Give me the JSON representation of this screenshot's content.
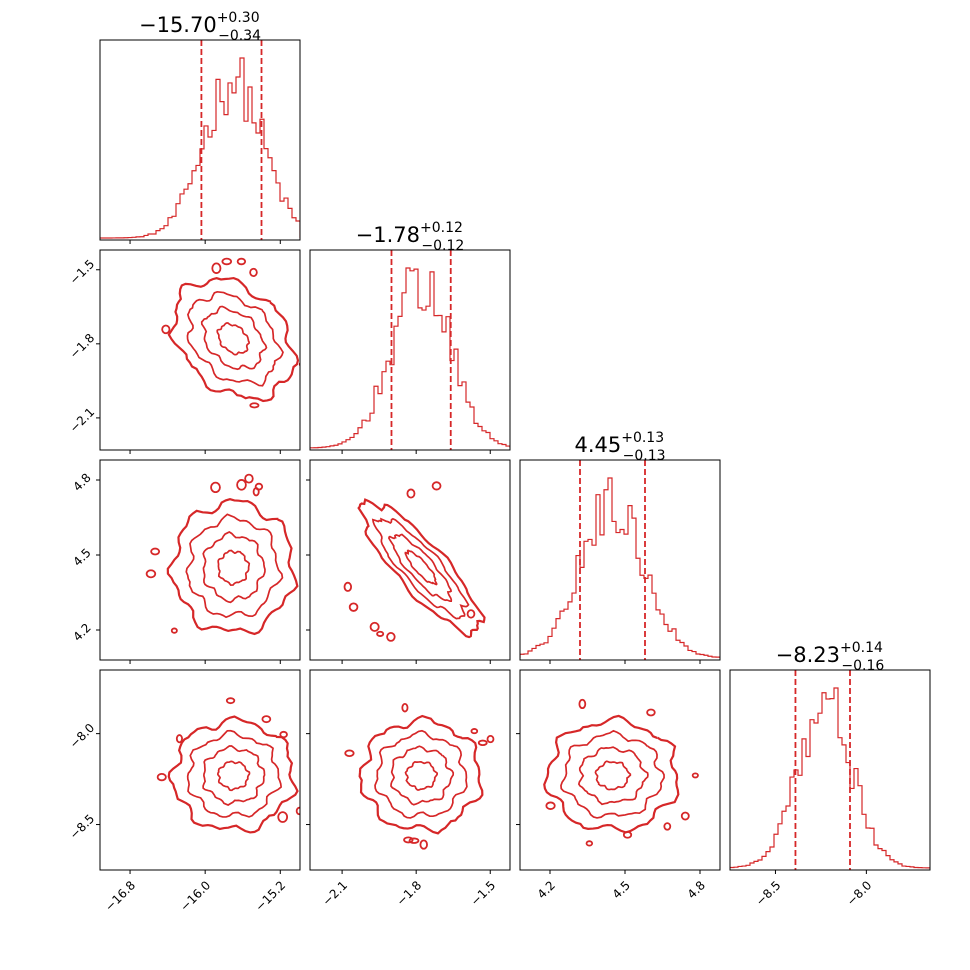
{
  "chart_data": {
    "type": "corner",
    "color": "#d62728",
    "parameters": [
      {
        "title_value": "−15.70",
        "title_upper": "+0.30",
        "title_lower": "−0.34",
        "range": [
          -17.12,
          -14.99
        ],
        "ticks": [
          -16.8,
          -16.0,
          -15.2
        ],
        "tick_labels": [
          "−16.8",
          "−16.0",
          "−15.2"
        ],
        "median": -15.7,
        "quantiles": [
          -16.04,
          -15.4
        ],
        "sd": 0.32,
        "hist_max_norm": 1.0
      },
      {
        "title_value": "−1.78",
        "title_upper": "+0.12",
        "title_lower": "−0.12",
        "range": [
          -2.23,
          -1.42
        ],
        "ticks": [
          -2.1,
          -1.8,
          -1.5
        ],
        "tick_labels": [
          "−2.1",
          "−1.8",
          "−1.5"
        ],
        "median": -1.78,
        "quantiles": [
          -1.9,
          -1.66
        ],
        "sd": 0.12,
        "hist_max_norm": 1.0
      },
      {
        "title_value": "4.45",
        "title_upper": "+0.13",
        "title_lower": "−0.13",
        "range": [
          4.08,
          4.88
        ],
        "ticks": [
          4.2,
          4.5,
          4.8
        ],
        "tick_labels": [
          "4.2",
          "4.5",
          "4.8"
        ],
        "median": 4.45,
        "quantiles": [
          4.32,
          4.58
        ],
        "sd": 0.13,
        "hist_max_norm": 1.0
      },
      {
        "title_value": "−8.23",
        "title_upper": "+0.14",
        "title_lower": "−0.16",
        "range": [
          -8.75,
          -7.65
        ],
        "ticks": [
          -8.5,
          -8.0
        ],
        "tick_labels": [
          "−8.5",
          "−8.0"
        ],
        "median": -8.23,
        "quantiles": [
          -8.39,
          -8.09
        ],
        "sd": 0.15,
        "hist_max_norm": 1.0
      }
    ],
    "correlations": {
      "1-0": -0.3,
      "2-0": 0.0,
      "2-1": -0.85,
      "3-0": 0.0,
      "3-1": 0.0,
      "3-2": 0.0
    },
    "contour_levels_sigma": [
      0.5,
      1.0,
      1.5,
      2.0
    ]
  }
}
